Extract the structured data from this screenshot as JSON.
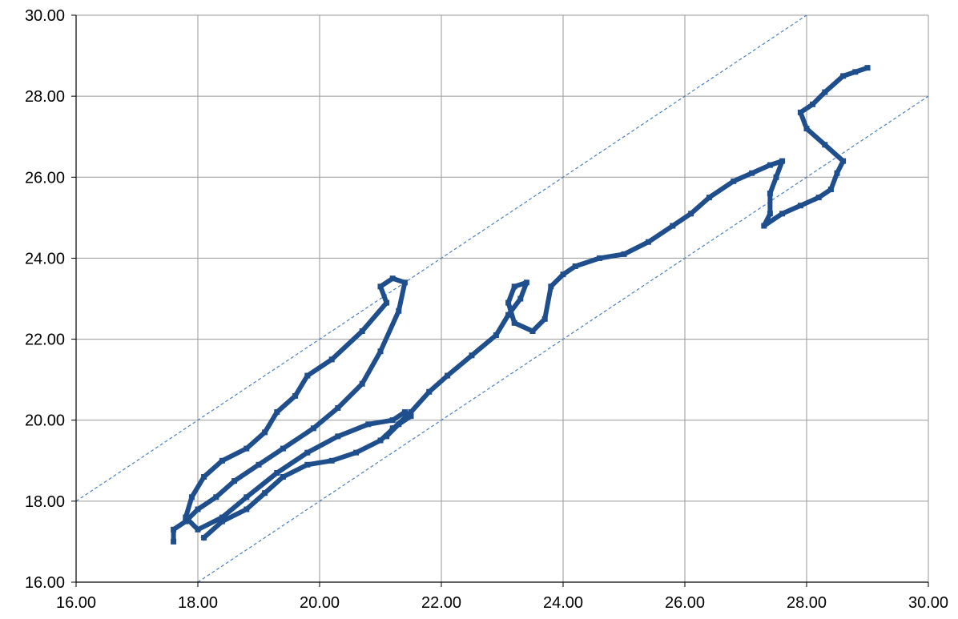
{
  "chart_data": {
    "type": "scatter",
    "title": "",
    "xlabel": "",
    "ylabel": "",
    "xlim": [
      16,
      30
    ],
    "ylim": [
      16,
      30
    ],
    "grid": true,
    "legend": "none",
    "x_ticks": [
      "16.00",
      "18.00",
      "20.00",
      "22.00",
      "24.00",
      "26.00",
      "28.00",
      "30.00"
    ],
    "y_ticks": [
      "16.00",
      "18.00",
      "20.00",
      "22.00",
      "24.00",
      "26.00",
      "28.00",
      "30.00"
    ],
    "colors": {
      "series": "#1f4e8c",
      "reference": "#4a7fc1",
      "grid": "#9a9a9a",
      "axis": "#000000"
    },
    "series": [
      {
        "style": "thick-trajectory",
        "points": [
          [
            17.6,
            17.0
          ],
          [
            17.6,
            17.3
          ],
          [
            17.8,
            17.5
          ],
          [
            18.0,
            17.8
          ],
          [
            18.3,
            18.1
          ],
          [
            18.6,
            18.5
          ],
          [
            19.0,
            18.9
          ],
          [
            19.4,
            19.3
          ],
          [
            19.9,
            19.8
          ],
          [
            20.3,
            20.3
          ],
          [
            20.7,
            20.9
          ],
          [
            21.0,
            21.7
          ],
          [
            21.3,
            22.7
          ],
          [
            21.4,
            23.4
          ],
          [
            21.2,
            23.5
          ],
          [
            21.0,
            23.3
          ],
          [
            21.1,
            22.9
          ],
          [
            20.7,
            22.2
          ],
          [
            20.2,
            21.5
          ],
          [
            19.8,
            21.1
          ],
          [
            19.6,
            20.6
          ],
          [
            19.3,
            20.2
          ],
          [
            19.1,
            19.7
          ],
          [
            18.8,
            19.3
          ],
          [
            18.4,
            19.0
          ],
          [
            18.1,
            18.6
          ],
          [
            17.9,
            18.1
          ],
          [
            17.8,
            17.6
          ],
          [
            18.0,
            17.3
          ],
          [
            18.4,
            17.6
          ],
          [
            18.8,
            18.1
          ],
          [
            19.3,
            18.7
          ],
          [
            19.8,
            19.2
          ],
          [
            20.3,
            19.6
          ],
          [
            20.8,
            19.9
          ],
          [
            21.2,
            20.0
          ],
          [
            21.4,
            20.2
          ],
          [
            21.5,
            20.1
          ],
          [
            21.3,
            19.9
          ],
          [
            21.1,
            19.6
          ],
          [
            21.2,
            19.8
          ]
        ]
      },
      {
        "style": "thick-trajectory",
        "points": [
          [
            18.1,
            17.1
          ],
          [
            18.4,
            17.5
          ],
          [
            18.8,
            17.8
          ],
          [
            19.1,
            18.2
          ],
          [
            19.4,
            18.6
          ],
          [
            19.8,
            18.9
          ],
          [
            20.2,
            19.0
          ],
          [
            20.6,
            19.2
          ],
          [
            21.0,
            19.5
          ],
          [
            21.5,
            20.2
          ],
          [
            21.8,
            20.7
          ],
          [
            22.1,
            21.1
          ],
          [
            22.5,
            21.6
          ],
          [
            22.9,
            22.1
          ],
          [
            23.1,
            22.6
          ],
          [
            23.3,
            23.0
          ],
          [
            23.4,
            23.4
          ],
          [
            23.2,
            23.3
          ],
          [
            23.1,
            22.9
          ],
          [
            23.2,
            22.4
          ],
          [
            23.5,
            22.2
          ],
          [
            23.7,
            22.5
          ],
          [
            23.8,
            23.3
          ],
          [
            24.0,
            23.6
          ],
          [
            24.2,
            23.8
          ],
          [
            24.6,
            24.0
          ],
          [
            25.0,
            24.1
          ],
          [
            25.4,
            24.4
          ],
          [
            25.8,
            24.8
          ],
          [
            26.1,
            25.1
          ],
          [
            26.4,
            25.5
          ],
          [
            26.8,
            25.9
          ],
          [
            27.1,
            26.1
          ],
          [
            27.4,
            26.3
          ],
          [
            27.6,
            26.4
          ],
          [
            27.5,
            26.0
          ],
          [
            27.4,
            25.6
          ],
          [
            27.4,
            25.1
          ],
          [
            27.3,
            24.8
          ],
          [
            27.6,
            25.1
          ],
          [
            27.9,
            25.3
          ],
          [
            28.2,
            25.5
          ],
          [
            28.4,
            25.7
          ],
          [
            28.5,
            26.1
          ],
          [
            28.6,
            26.4
          ],
          [
            28.3,
            26.8
          ],
          [
            28.0,
            27.2
          ],
          [
            27.9,
            27.6
          ],
          [
            28.1,
            27.8
          ],
          [
            28.3,
            28.1
          ],
          [
            28.6,
            28.5
          ],
          [
            28.8,
            28.6
          ],
          [
            29.0,
            28.7
          ]
        ]
      }
    ],
    "reference_lines": [
      {
        "style": "dashed",
        "from": [
          16,
          18
        ],
        "to": [
          28,
          30
        ]
      },
      {
        "style": "dashed",
        "from": [
          18,
          16
        ],
        "to": [
          30,
          28
        ]
      }
    ]
  }
}
